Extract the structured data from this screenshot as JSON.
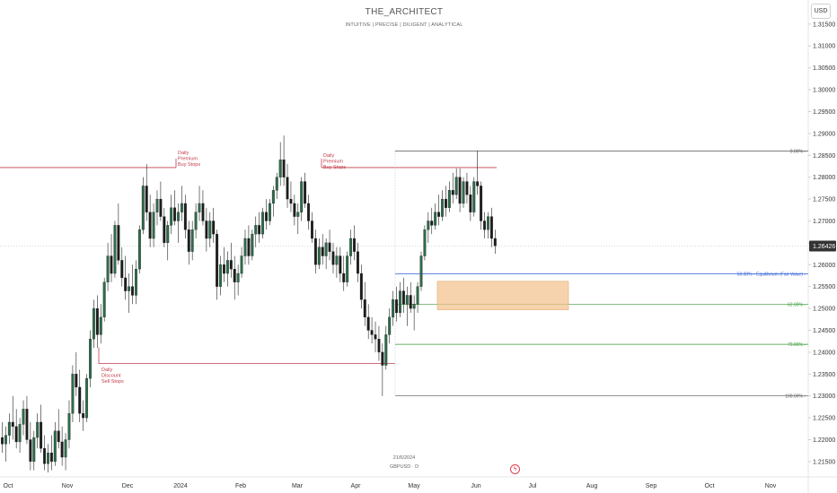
{
  "header": {
    "title": "THE_ARCHITECT",
    "subtitle": "INTUITIVE | PRECISE | DILIGENT | ANALYTICAL"
  },
  "currency_button": "USD",
  "footer": {
    "date": "21/6/2024",
    "symbol": "GBPUSD · D"
  },
  "colors": {
    "up": "#2e6b4c",
    "down": "#1d1d1d",
    "liquidity": "#c23b4a",
    "fib_top": "#555555",
    "fib_equilibrium": "#2f5fd9",
    "fib_62": "#3a9a3a",
    "fib_79": "#3a9a3a",
    "fib_bottom": "#555555",
    "zone": "#f2c18a",
    "price_tag": "#333333"
  },
  "chart_data": {
    "type": "candlestick",
    "symbol": "GBPUSD",
    "timeframe": "D",
    "ylim": [
      1.2115,
      1.3205
    ],
    "y_ticks": [
      "1.21500",
      "1.22000",
      "1.22500",
      "1.23000",
      "1.23500",
      "1.24000",
      "1.24500",
      "1.25000",
      "1.25500",
      "1.26000",
      "1.26500",
      "1.27000",
      "1.27500",
      "1.28000",
      "1.28500",
      "1.29000",
      "1.29500",
      "1.30000",
      "1.30500",
      "1.31000",
      "1.31500"
    ],
    "x_ticks": [
      "Oct",
      "Nov",
      "Dec",
      "2024",
      "Feb",
      "Mar",
      "Apr",
      "May",
      "Jun",
      "Jul",
      "Aug",
      "Sep",
      "Oct",
      "Nov"
    ],
    "last_price": "1.26426",
    "candles": [
      [
        1.2205,
        1.224,
        1.217,
        1.219
      ],
      [
        1.219,
        1.223,
        1.215,
        1.221
      ],
      [
        1.221,
        1.226,
        1.219,
        1.224
      ],
      [
        1.224,
        1.23,
        1.22,
        1.223
      ],
      [
        1.223,
        1.227,
        1.218,
        1.2195
      ],
      [
        1.2195,
        1.225,
        1.217,
        1.2235
      ],
      [
        1.2235,
        1.229,
        1.221,
        1.227
      ],
      [
        1.227,
        1.23,
        1.219,
        1.22
      ],
      [
        1.22,
        1.224,
        1.213,
        1.215
      ],
      [
        1.215,
        1.222,
        1.213,
        1.2205
      ],
      [
        1.2205,
        1.226,
        1.218,
        1.224
      ],
      [
        1.224,
        1.228,
        1.217,
        1.218
      ],
      [
        1.218,
        1.221,
        1.213,
        1.2145
      ],
      [
        1.2145,
        1.219,
        1.2125,
        1.217
      ],
      [
        1.217,
        1.221,
        1.213,
        1.215
      ],
      [
        1.215,
        1.224,
        1.214,
        1.222
      ],
      [
        1.222,
        1.227,
        1.218,
        1.2195
      ],
      [
        1.2195,
        1.223,
        1.214,
        1.216
      ],
      [
        1.216,
        1.2215,
        1.213,
        1.22
      ],
      [
        1.22,
        1.229,
        1.218,
        1.226
      ],
      [
        1.226,
        1.237,
        1.224,
        1.235
      ],
      [
        1.235,
        1.24,
        1.23,
        1.232
      ],
      [
        1.232,
        1.236,
        1.224,
        1.226
      ],
      [
        1.226,
        1.229,
        1.222,
        1.225
      ],
      [
        1.225,
        1.235,
        1.224,
        1.234
      ],
      [
        1.234,
        1.245,
        1.232,
        1.243
      ],
      [
        1.243,
        1.252,
        1.241,
        1.25
      ],
      [
        1.25,
        1.253,
        1.241,
        1.244
      ],
      [
        1.244,
        1.251,
        1.242,
        1.248
      ],
      [
        1.248,
        1.257,
        1.247,
        1.256
      ],
      [
        1.256,
        1.265,
        1.254,
        1.262
      ],
      [
        1.262,
        1.267,
        1.256,
        1.258
      ],
      [
        1.258,
        1.27,
        1.257,
        1.269
      ],
      [
        1.269,
        1.274,
        1.26,
        1.261
      ],
      [
        1.261,
        1.264,
        1.255,
        1.257
      ],
      [
        1.257,
        1.262,
        1.252,
        1.254
      ],
      [
        1.254,
        1.258,
        1.249,
        1.255
      ],
      [
        1.255,
        1.26,
        1.251,
        1.253
      ],
      [
        1.253,
        1.261,
        1.251,
        1.259
      ],
      [
        1.259,
        1.269,
        1.258,
        1.268
      ],
      [
        1.268,
        1.28,
        1.267,
        1.278
      ],
      [
        1.278,
        1.283,
        1.27,
        1.272
      ],
      [
        1.272,
        1.276,
        1.264,
        1.266
      ],
      [
        1.266,
        1.274,
        1.264,
        1.272
      ],
      [
        1.272,
        1.277,
        1.269,
        1.275
      ],
      [
        1.275,
        1.279,
        1.27,
        1.271
      ],
      [
        1.271,
        1.273,
        1.264,
        1.265
      ],
      [
        1.265,
        1.27,
        1.261,
        1.269
      ],
      [
        1.269,
        1.276,
        1.267,
        1.273
      ],
      [
        1.273,
        1.277,
        1.269,
        1.27
      ],
      [
        1.27,
        1.274,
        1.265,
        1.272
      ],
      [
        1.272,
        1.278,
        1.27,
        1.274
      ],
      [
        1.274,
        1.276,
        1.266,
        1.268
      ],
      [
        1.268,
        1.27,
        1.26,
        1.263
      ],
      [
        1.263,
        1.27,
        1.261,
        1.268
      ],
      [
        1.268,
        1.274,
        1.266,
        1.272
      ],
      [
        1.272,
        1.278,
        1.27,
        1.274
      ],
      [
        1.274,
        1.277,
        1.269,
        1.27
      ],
      [
        1.27,
        1.273,
        1.263,
        1.266
      ],
      [
        1.266,
        1.272,
        1.264,
        1.27
      ],
      [
        1.27,
        1.273,
        1.265,
        1.267
      ],
      [
        1.267,
        1.268,
        1.252,
        1.255
      ],
      [
        1.255,
        1.262,
        1.253,
        1.26
      ],
      [
        1.26,
        1.264,
        1.256,
        1.258
      ],
      [
        1.258,
        1.263,
        1.255,
        1.261
      ],
      [
        1.261,
        1.265,
        1.257,
        1.259
      ],
      [
        1.259,
        1.262,
        1.252,
        1.256
      ],
      [
        1.256,
        1.26,
        1.253,
        1.258
      ],
      [
        1.258,
        1.264,
        1.257,
        1.262
      ],
      [
        1.262,
        1.268,
        1.26,
        1.266
      ],
      [
        1.266,
        1.269,
        1.26,
        1.262
      ],
      [
        1.262,
        1.268,
        1.261,
        1.267
      ],
      [
        1.267,
        1.271,
        1.264,
        1.269
      ],
      [
        1.269,
        1.272,
        1.265,
        1.267
      ],
      [
        1.267,
        1.273,
        1.266,
        1.272
      ],
      [
        1.272,
        1.275,
        1.268,
        1.27
      ],
      [
        1.27,
        1.275,
        1.269,
        1.274
      ],
      [
        1.274,
        1.278,
        1.271,
        1.277
      ],
      [
        1.277,
        1.281,
        1.275,
        1.28
      ],
      [
        1.28,
        1.288,
        1.278,
        1.284
      ],
      [
        1.284,
        1.2895,
        1.278,
        1.28
      ],
      [
        1.28,
        1.283,
        1.273,
        1.275
      ],
      [
        1.275,
        1.279,
        1.272,
        1.274
      ],
      [
        1.274,
        1.276,
        1.269,
        1.271
      ],
      [
        1.271,
        1.274,
        1.267,
        1.272
      ],
      [
        1.272,
        1.28,
        1.27,
        1.279
      ],
      [
        1.279,
        1.281,
        1.273,
        1.274
      ],
      [
        1.274,
        1.276,
        1.268,
        1.27
      ],
      [
        1.27,
        1.272,
        1.265,
        1.266
      ],
      [
        1.266,
        1.268,
        1.258,
        1.26
      ],
      [
        1.26,
        1.266,
        1.259,
        1.264
      ],
      [
        1.264,
        1.267,
        1.26,
        1.262
      ],
      [
        1.262,
        1.266,
        1.259,
        1.265
      ],
      [
        1.265,
        1.268,
        1.261,
        1.263
      ],
      [
        1.263,
        1.265,
        1.258,
        1.26
      ],
      [
        1.26,
        1.264,
        1.257,
        1.262
      ],
      [
        1.262,
        1.264,
        1.256,
        1.258
      ],
      [
        1.258,
        1.262,
        1.254,
        1.256
      ],
      [
        1.256,
        1.263,
        1.255,
        1.262
      ],
      [
        1.262,
        1.268,
        1.26,
        1.266
      ],
      [
        1.266,
        1.269,
        1.261,
        1.263
      ],
      [
        1.263,
        1.265,
        1.256,
        1.258
      ],
      [
        1.258,
        1.26,
        1.25,
        1.252
      ],
      [
        1.252,
        1.256,
        1.246,
        1.248
      ],
      [
        1.248,
        1.251,
        1.243,
        1.245
      ],
      [
        1.245,
        1.248,
        1.242,
        1.244
      ],
      [
        1.244,
        1.247,
        1.24,
        1.243
      ],
      [
        1.243,
        1.246,
        1.238,
        1.24
      ],
      [
        1.24,
        1.242,
        1.23,
        1.237
      ],
      [
        1.237,
        1.246,
        1.236,
        1.244
      ],
      [
        1.244,
        1.25,
        1.242,
        1.248
      ],
      [
        1.248,
        1.254,
        1.246,
        1.252
      ],
      [
        1.252,
        1.255,
        1.247,
        1.249
      ],
      [
        1.249,
        1.256,
        1.248,
        1.254
      ],
      [
        1.254,
        1.257,
        1.249,
        1.251
      ],
      [
        1.251,
        1.255,
        1.246,
        1.253
      ],
      [
        1.253,
        1.256,
        1.249,
        1.25
      ],
      [
        1.25,
        1.253,
        1.245,
        1.251
      ],
      [
        1.251,
        1.256,
        1.249,
        1.255
      ],
      [
        1.255,
        1.263,
        1.254,
        1.262
      ],
      [
        1.262,
        1.269,
        1.261,
        1.268
      ],
      [
        1.268,
        1.272,
        1.265,
        1.27
      ],
      [
        1.27,
        1.273,
        1.267,
        1.269
      ],
      [
        1.269,
        1.274,
        1.268,
        1.272
      ],
      [
        1.272,
        1.276,
        1.269,
        1.271
      ],
      [
        1.271,
        1.277,
        1.27,
        1.275
      ],
      [
        1.275,
        1.278,
        1.271,
        1.273
      ],
      [
        1.273,
        1.279,
        1.272,
        1.277
      ],
      [
        1.277,
        1.281,
        1.274,
        1.276
      ],
      [
        1.276,
        1.282,
        1.275,
        1.28
      ],
      [
        1.28,
        1.282,
        1.272,
        1.274
      ],
      [
        1.274,
        1.28,
        1.273,
        1.279
      ],
      [
        1.279,
        1.281,
        1.274,
        1.276
      ],
      [
        1.276,
        1.278,
        1.27,
        1.272
      ],
      [
        1.272,
        1.28,
        1.271,
        1.279
      ],
      [
        1.279,
        1.286,
        1.276,
        1.278
      ],
      [
        1.278,
        1.279,
        1.268,
        1.27
      ],
      [
        1.27,
        1.272,
        1.266,
        1.268
      ],
      [
        1.268,
        1.272,
        1.266,
        1.271
      ],
      [
        1.271,
        1.273,
        1.264,
        1.266
      ],
      [
        1.266,
        1.268,
        1.2625,
        1.2643
      ]
    ],
    "annotations": {
      "buy_stops_left": {
        "level": 1.2822,
        "label": [
          "Daily",
          "Premium",
          "Buy Stops"
        ]
      },
      "buy_stops_right": {
        "level": 1.2822,
        "label": [
          "Daily",
          "Premium",
          "Buy Stops"
        ]
      },
      "sell_stops": {
        "level": 1.2374,
        "label": [
          "Daily",
          "Discount",
          "Sell Stops"
        ]
      },
      "fib": [
        {
          "level": 1.286,
          "label": "0.00%"
        },
        {
          "level": 1.2579,
          "label": "50.00% - Equilibrium (Fair Value)"
        },
        {
          "level": 1.2509,
          "label": "62.00%"
        },
        {
          "level": 1.2418,
          "label": "79.00%"
        },
        {
          "level": 1.23,
          "label": "100.00%"
        }
      ],
      "zone": {
        "top": 1.2562,
        "bottom": 1.2497
      }
    }
  }
}
